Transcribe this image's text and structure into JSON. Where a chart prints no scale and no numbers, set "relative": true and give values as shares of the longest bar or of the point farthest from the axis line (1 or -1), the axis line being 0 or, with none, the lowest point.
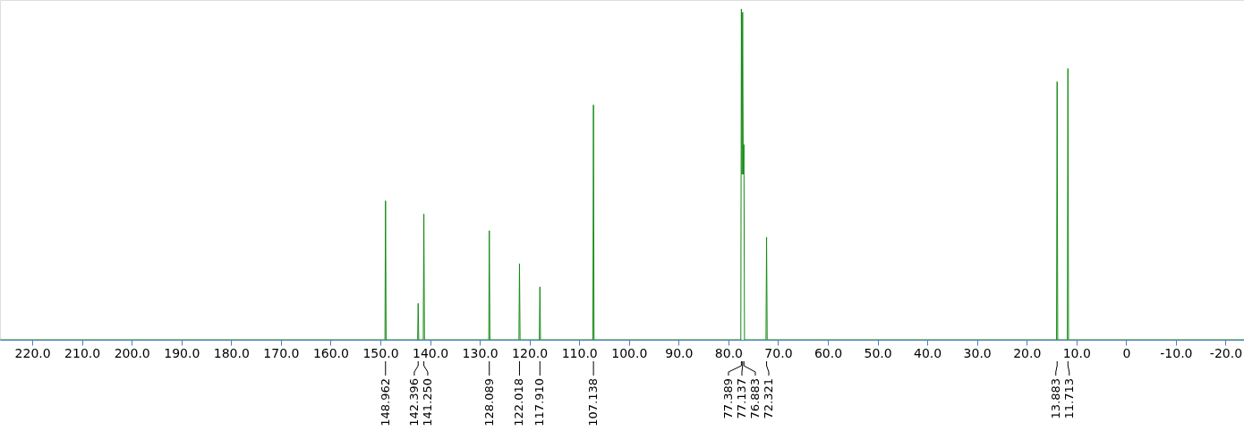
{
  "chart_data": {
    "type": "line",
    "relative": true,
    "tick_labels": "x",
    "grid": false,
    "xlim": [
      226.5,
      -23.7
    ],
    "xticks": [
      {
        "value": 220,
        "label": "220.0"
      },
      {
        "value": 210,
        "label": "210.0"
      },
      {
        "value": 200,
        "label": "200.0"
      },
      {
        "value": 190,
        "label": "190.0"
      },
      {
        "value": 180,
        "label": "180.0"
      },
      {
        "value": 170,
        "label": "170.0"
      },
      {
        "value": 160,
        "label": "160.0"
      },
      {
        "value": 150,
        "label": "150.0"
      },
      {
        "value": 140,
        "label": "140.0"
      },
      {
        "value": 130,
        "label": "130.0"
      },
      {
        "value": 120,
        "label": "120.0"
      },
      {
        "value": 110,
        "label": "110.0"
      },
      {
        "value": 100,
        "label": "100.0"
      },
      {
        "value": 90,
        "label": "90.0"
      },
      {
        "value": 80,
        "label": "80.0"
      },
      {
        "value": 70,
        "label": "70.0"
      },
      {
        "value": 60,
        "label": "60.0"
      },
      {
        "value": 50,
        "label": "50.0"
      },
      {
        "value": 40,
        "label": "40.0"
      },
      {
        "value": 30,
        "label": "30.0"
      },
      {
        "value": 20,
        "label": "20.0"
      },
      {
        "value": 10,
        "label": "10.0"
      },
      0,
      {
        "value": -10,
        "label": "-10.0"
      },
      {
        "value": -20,
        "label": "-20.0"
      }
    ],
    "series": [
      {
        "color": "#138a13",
        "x": [
          226.5,
          149.08,
          148.962,
          148.84,
          142.5,
          142.396,
          142.28,
          141.37,
          141.25,
          141.13,
          128.2,
          128.089,
          127.97,
          122.13,
          122.018,
          121.9,
          118.03,
          117.91,
          117.79,
          107.26,
          107.138,
          107.02,
          77.5,
          77.389,
          77.26,
          77.137,
          77.01,
          76.883,
          76.76,
          72.44,
          72.321,
          72.2,
          14.0,
          13.883,
          13.76,
          11.83,
          11.713,
          11.59,
          -23.7
        ],
        "values": [
          0,
          0,
          0.42,
          0,
          0,
          0.11,
          0,
          0,
          0.38,
          0,
          0,
          0.33,
          0,
          0,
          0.23,
          0,
          0,
          0.16,
          0,
          0,
          0.71,
          0,
          0,
          1,
          0.5,
          0.99,
          0.5,
          0.59,
          0,
          0,
          0.31,
          0,
          0,
          0.78,
          0,
          0,
          0.82,
          0,
          0
        ]
      }
    ],
    "annotations": [
      {
        "text": "148.962",
        "x": 148.962
      },
      {
        "text": "142.396",
        "x": 142.396
      },
      {
        "text": "141.250",
        "x": 141.25
      },
      {
        "text": "128.089",
        "x": 128.089
      },
      {
        "text": "122.018",
        "x": 122.018
      },
      {
        "text": "117.910",
        "x": 117.91
      },
      {
        "text": "107.138",
        "x": 107.138
      },
      {
        "text": "77.389",
        "x": 77.389
      },
      {
        "text": "77.137",
        "x": 77.137
      },
      {
        "text": "76.883",
        "x": 76.883
      },
      {
        "text": "72.321",
        "x": 72.321
      },
      {
        "text": "13.883",
        "x": 13.883
      },
      {
        "text": "11.713",
        "x": 11.713
      }
    ]
  }
}
